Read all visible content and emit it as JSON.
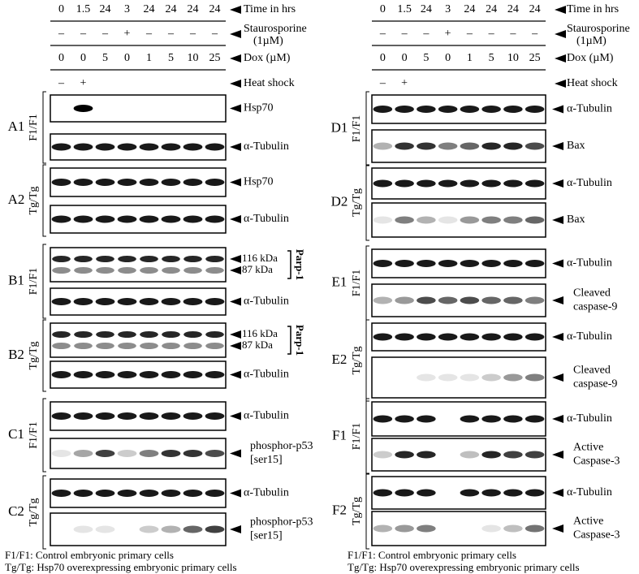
{
  "columns": [
    {
      "header": {
        "rows": [
          {
            "label": "Time in hrs",
            "cells": [
              "0",
              "1.5",
              "24",
              "3",
              "24",
              "24",
              "24",
              "24"
            ]
          },
          {
            "label": "Staurosporine",
            "sublabel": "(1µM)",
            "cells": [
              "–",
              "–",
              "–",
              "+",
              "–",
              "–",
              "–",
              "–"
            ]
          },
          {
            "label": "Dox (µM)",
            "cells": [
              "0",
              "0",
              "5",
              "0",
              "1",
              "5",
              "10",
              "25"
            ]
          },
          {
            "label": "Heat shock",
            "cells": [
              "–",
              "+"
            ]
          }
        ]
      },
      "panels": [
        {
          "id": "A1",
          "genotype": "F1/F1",
          "blots": [
            {
              "labels": [
                "Hsp70"
              ]
            },
            {
              "labels": [
                "α-Tubulin"
              ]
            }
          ]
        },
        {
          "id": "A2",
          "genotype": "Tg/Tg",
          "blots": [
            {
              "labels": [
                "Hsp70"
              ]
            },
            {
              "labels": [
                "α-Tubulin"
              ]
            }
          ]
        },
        {
          "id": "B1",
          "genotype": "F1/F1",
          "blots": [
            {
              "bands": [
                "116 kDa",
                "87 kDa"
              ],
              "group": "Parp-1"
            },
            {
              "labels": [
                "α-Tubulin"
              ]
            }
          ]
        },
        {
          "id": "B2",
          "genotype": "Tg/Tg",
          "blots": [
            {
              "bands": [
                "116 kDa",
                "87 kDa"
              ],
              "group": "Parp-1"
            },
            {
              "labels": [
                "α-Tubulin"
              ]
            }
          ]
        },
        {
          "id": "C1",
          "genotype": "F1/F1",
          "blots": [
            {
              "labels": [
                "α-Tubulin"
              ]
            },
            {
              "labels": [
                "phosphor-p53",
                "[ser15]"
              ]
            }
          ]
        },
        {
          "id": "C2",
          "genotype": "Tg/Tg",
          "blots": [
            {
              "labels": [
                "α-Tubulin"
              ]
            },
            {
              "labels": [
                "phosphor-p53",
                "[ser15]"
              ]
            }
          ]
        }
      ],
      "footnotes": [
        "F1/F1: Control embryonic primary cells",
        "Tg/Tg: Hsp70 overexpressing embryonic primary cells"
      ]
    },
    {
      "header": {
        "rows": [
          {
            "label": "Time in hrs",
            "cells": [
              "0",
              "1.5",
              "24",
              "3",
              "24",
              "24",
              "24",
              "24"
            ]
          },
          {
            "label": "Staurosporine",
            "sublabel": "(1µM)",
            "cells": [
              "–",
              "–",
              "–",
              "+",
              "–",
              "–",
              "–",
              "–"
            ]
          },
          {
            "label": "Dox (µM)",
            "cells": [
              "0",
              "0",
              "5",
              "0",
              "1",
              "5",
              "10",
              "25"
            ]
          },
          {
            "label": "Heat shock",
            "cells": [
              "–",
              "+"
            ]
          }
        ]
      },
      "panels": [
        {
          "id": "D1",
          "genotype": "F1/F1",
          "blots": [
            {
              "labels": [
                "α-Tubulin"
              ]
            },
            {
              "labels": [
                "Bax"
              ]
            }
          ]
        },
        {
          "id": "D2",
          "genotype": "Tg/Tg",
          "blots": [
            {
              "labels": [
                "α-Tubulin"
              ]
            },
            {
              "labels": [
                "Bax"
              ]
            }
          ]
        },
        {
          "id": "E1",
          "genotype": "F1/F1",
          "blots": [
            {
              "labels": [
                "α-Tubulin"
              ]
            },
            {
              "labels": [
                "Cleaved",
                "caspase-9"
              ]
            }
          ]
        },
        {
          "id": "E2",
          "genotype": "Tg/Tg",
          "blots": [
            {
              "labels": [
                "α-Tubulin"
              ]
            },
            {
              "labels": [
                "Cleaved",
                "caspase-9"
              ]
            }
          ]
        },
        {
          "id": "F1",
          "genotype": "F1/F1",
          "blots": [
            {
              "labels": [
                "α-Tubulin"
              ]
            },
            {
              "labels": [
                "Active",
                "Caspase-3"
              ]
            }
          ]
        },
        {
          "id": "F2",
          "genotype": "Tg/Tg",
          "blots": [
            {
              "labels": [
                "α-Tubulin"
              ]
            },
            {
              "labels": [
                "Active",
                "Caspase-3"
              ]
            }
          ]
        }
      ],
      "footnotes": [
        "F1/F1: Control embryonic primary cells",
        "Tg/Tg: Hsp70 overexpressing embryonic primary cells"
      ]
    }
  ]
}
